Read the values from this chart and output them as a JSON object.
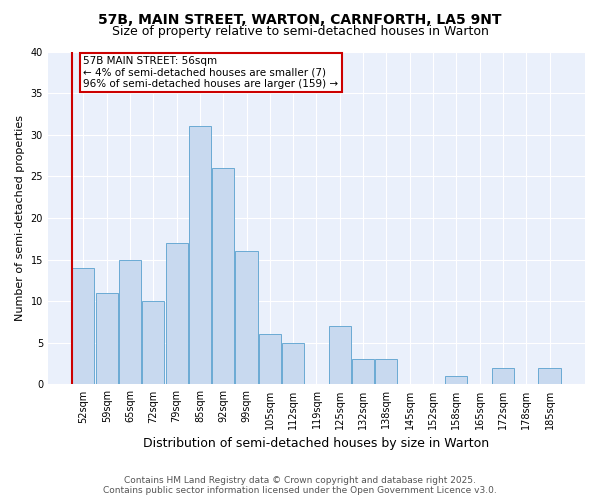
{
  "title": "57B, MAIN STREET, WARTON, CARNFORTH, LA5 9NT",
  "subtitle": "Size of property relative to semi-detached houses in Warton",
  "xlabel": "Distribution of semi-detached houses by size in Warton",
  "ylabel": "Number of semi-detached properties",
  "categories": [
    "52sqm",
    "59sqm",
    "65sqm",
    "72sqm",
    "79sqm",
    "85sqm",
    "92sqm",
    "99sqm",
    "105sqm",
    "112sqm",
    "119sqm",
    "125sqm",
    "132sqm",
    "138sqm",
    "145sqm",
    "152sqm",
    "158sqm",
    "165sqm",
    "172sqm",
    "178sqm",
    "185sqm"
  ],
  "values": [
    14,
    11,
    15,
    10,
    17,
    31,
    26,
    16,
    6,
    5,
    0,
    7,
    3,
    3,
    0,
    0,
    1,
    0,
    2,
    0,
    2
  ],
  "bar_color": "#c8d9ef",
  "bar_edge_color": "#6aaad4",
  "highlight_color": "#cc0000",
  "annotation_text": "57B MAIN STREET: 56sqm\n← 4% of semi-detached houses are smaller (7)\n96% of semi-detached houses are larger (159) →",
  "annotation_box_color": "#cc0000",
  "ylim": [
    0,
    40
  ],
  "yticks": [
    0,
    5,
    10,
    15,
    20,
    25,
    30,
    35,
    40
  ],
  "background_color": "#eaf0fb",
  "grid_color": "#ffffff",
  "footer": "Contains HM Land Registry data © Crown copyright and database right 2025.\nContains public sector information licensed under the Open Government Licence v3.0.",
  "title_fontsize": 10,
  "subtitle_fontsize": 9,
  "xlabel_fontsize": 9,
  "ylabel_fontsize": 8,
  "tick_fontsize": 7,
  "annotation_fontsize": 7.5,
  "footer_fontsize": 6.5
}
